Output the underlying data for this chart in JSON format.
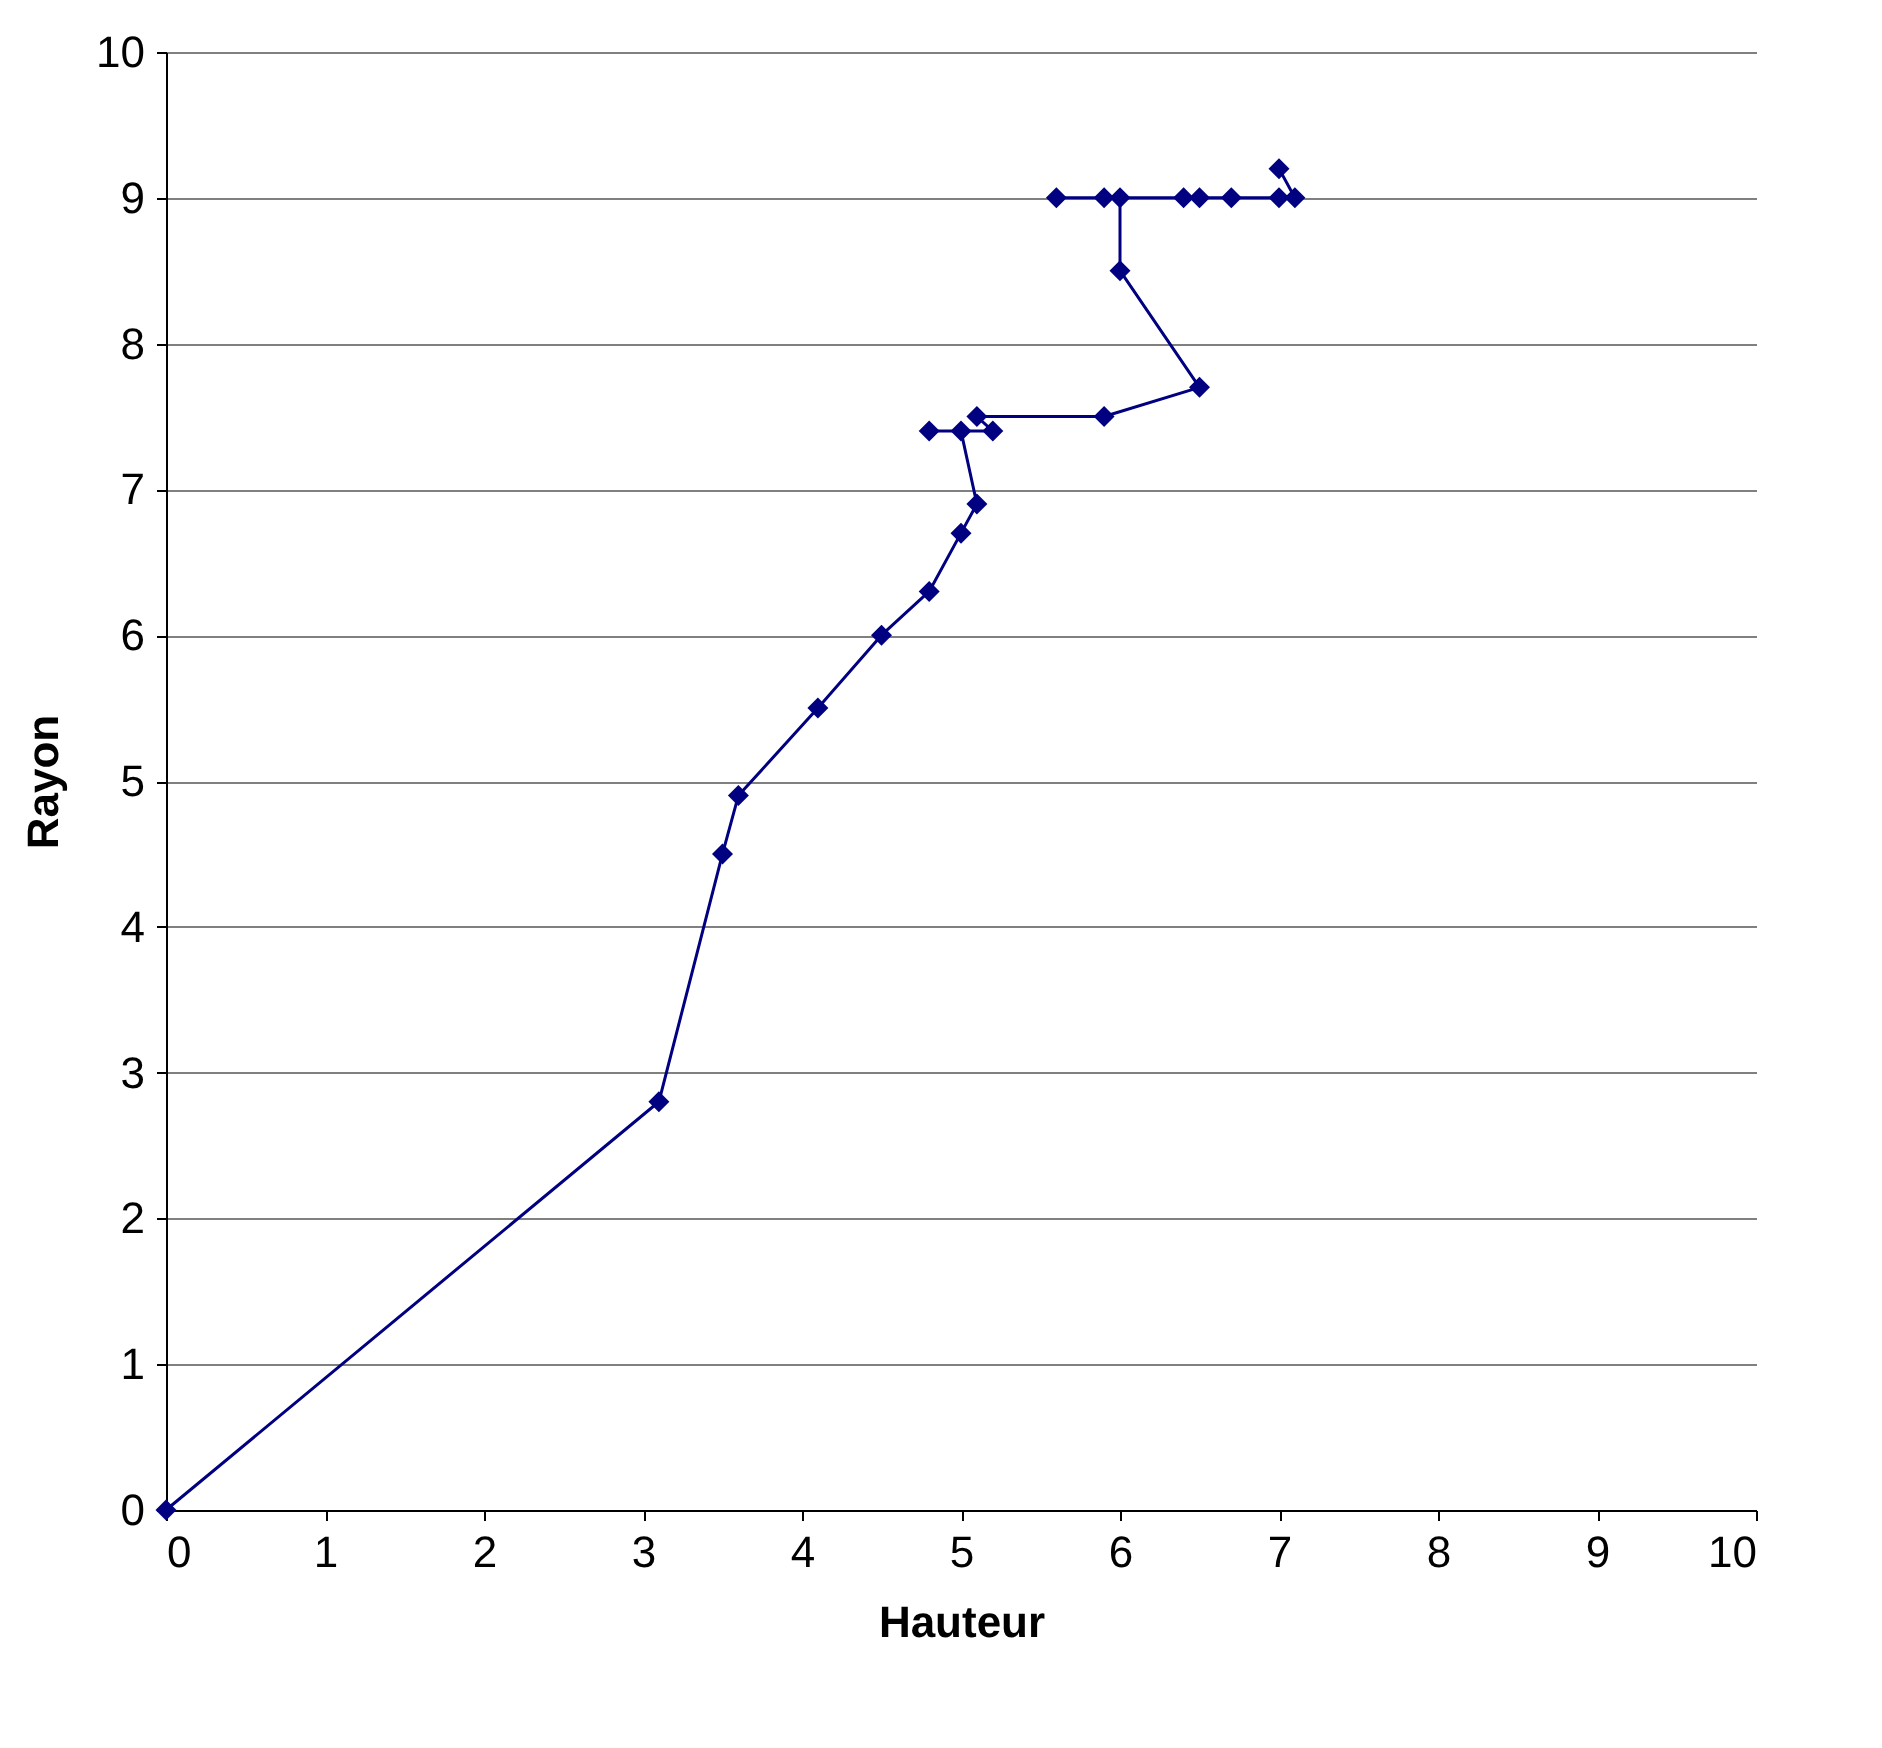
{
  "chart_data": {
    "type": "line",
    "xlabel": "Hauteur",
    "ylabel": "Rayon",
    "x": [
      0,
      3.1,
      3.5,
      3.6,
      4.1,
      4.5,
      4.8,
      5.0,
      5.1,
      5.0,
      4.8,
      5.2,
      5.1,
      5.9,
      6.5,
      6.0,
      6.0,
      5.9,
      5.6,
      6.4,
      6.5,
      6.7,
      7.0,
      7.1,
      7.0
    ],
    "series": [
      {
        "color": "#000080",
        "values": [
          0,
          2.8,
          4.5,
          4.9,
          5.5,
          6.0,
          6.3,
          6.7,
          6.9,
          7.4,
          7.4,
          7.4,
          7.5,
          7.5,
          7.7,
          8.5,
          9.0,
          9.0,
          9.0,
          9.0,
          9.0,
          9.0,
          9.0,
          9.0,
          9.2
        ]
      }
    ],
    "xlim": [
      0,
      10
    ],
    "xticks": [
      0,
      1,
      2,
      3,
      4,
      5,
      6,
      7,
      8,
      9,
      10
    ],
    "ylim": [
      0,
      10
    ],
    "yticks": [
      0,
      1,
      2,
      3,
      4,
      5,
      6,
      7,
      8,
      9,
      10
    ],
    "grid": "y",
    "marker": "diamond",
    "line_style": "solid"
  }
}
